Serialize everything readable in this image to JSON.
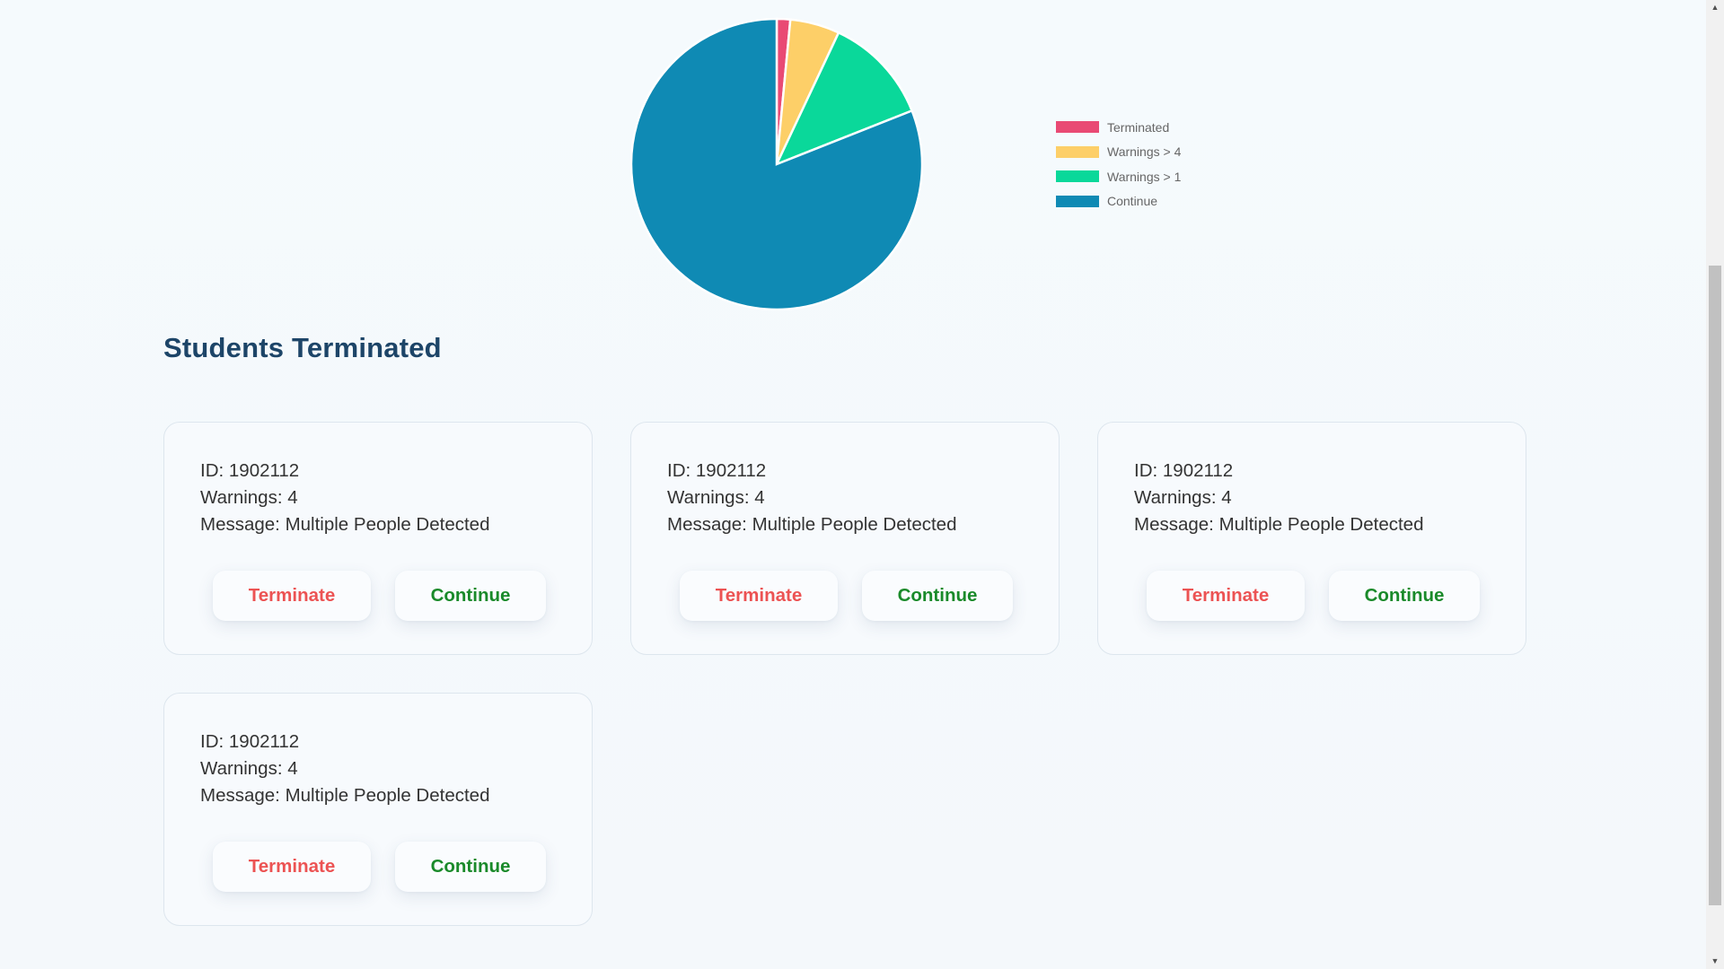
{
  "chart_data": {
    "type": "pie",
    "title": "",
    "labels": [
      "Terminated",
      "Warnings > 4",
      "Warnings > 1",
      "Continue"
    ],
    "values": [
      1.5,
      5.5,
      12,
      81
    ],
    "colors": [
      "#e94a74",
      "#fdcf68",
      "#0ad89a",
      "#0f8ab4"
    ],
    "legend_position": "right"
  },
  "section": {
    "title": "Students Terminated"
  },
  "cards": [
    {
      "id": "ID: 1902112",
      "warnings": "Warnings: 4",
      "message": "Message: Multiple People Detected",
      "terminate_label": "Terminate",
      "continue_label": "Continue"
    },
    {
      "id": "ID: 1902112",
      "warnings": "Warnings: 4",
      "message": "Message: Multiple People Detected",
      "terminate_label": "Terminate",
      "continue_label": "Continue"
    },
    {
      "id": "ID: 1902112",
      "warnings": "Warnings: 4",
      "message": "Message: Multiple People Detected",
      "terminate_label": "Terminate",
      "continue_label": "Continue"
    },
    {
      "id": "ID: 1902112",
      "warnings": "Warnings: 4",
      "message": "Message: Multiple People Detected",
      "terminate_label": "Terminate",
      "continue_label": "Continue"
    }
  ],
  "scrollbar": {
    "up_icon": "triangle-up-icon",
    "down_icon": "triangle-down-icon"
  }
}
